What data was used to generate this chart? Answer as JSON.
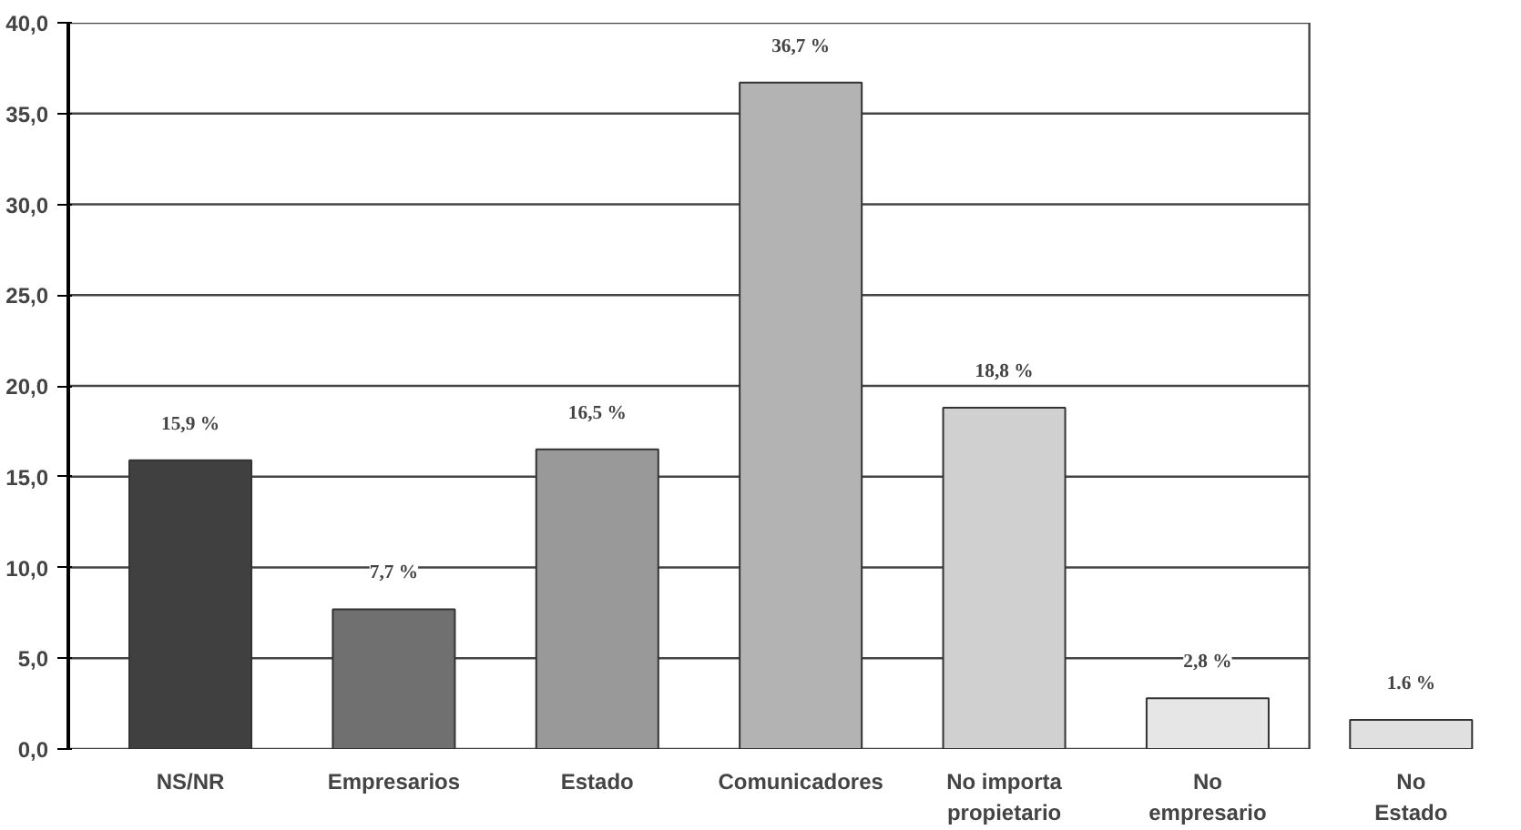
{
  "chart_data": {
    "type": "bar",
    "categories": [
      "NS/NR",
      "Empresarios",
      "Estado",
      "Comunicadores",
      "No importa\npropietario",
      "No\nempresario",
      "No\nEstado"
    ],
    "values": [
      15.9,
      7.7,
      16.5,
      36.7,
      18.8,
      2.8,
      1.6
    ],
    "colors": [
      "#404040",
      "#707070",
      "#999999",
      "#b3b3b3",
      "#d0d0d0",
      "#e6e6e6",
      "#e0e0e0"
    ],
    "value_labels": [
      "15,9 %",
      "7,7 %",
      "16,5 %",
      "36,7 %",
      "18,8 %",
      "2,8 %",
      "1.6 %"
    ],
    "ylim": [
      0,
      40
    ],
    "yticks": [
      {
        "value": 0,
        "label": "0,0"
      },
      {
        "value": 5,
        "label": "5,0"
      },
      {
        "value": 10,
        "label": "10,0"
      },
      {
        "value": 15,
        "label": "15,0"
      },
      {
        "value": 20,
        "label": "20,0"
      },
      {
        "value": 25,
        "label": "25,0"
      },
      {
        "value": 30,
        "label": "30,0"
      },
      {
        "value": 35,
        "label": "35,0"
      },
      {
        "value": 40,
        "label": "40,0"
      }
    ],
    "grid": "y"
  }
}
